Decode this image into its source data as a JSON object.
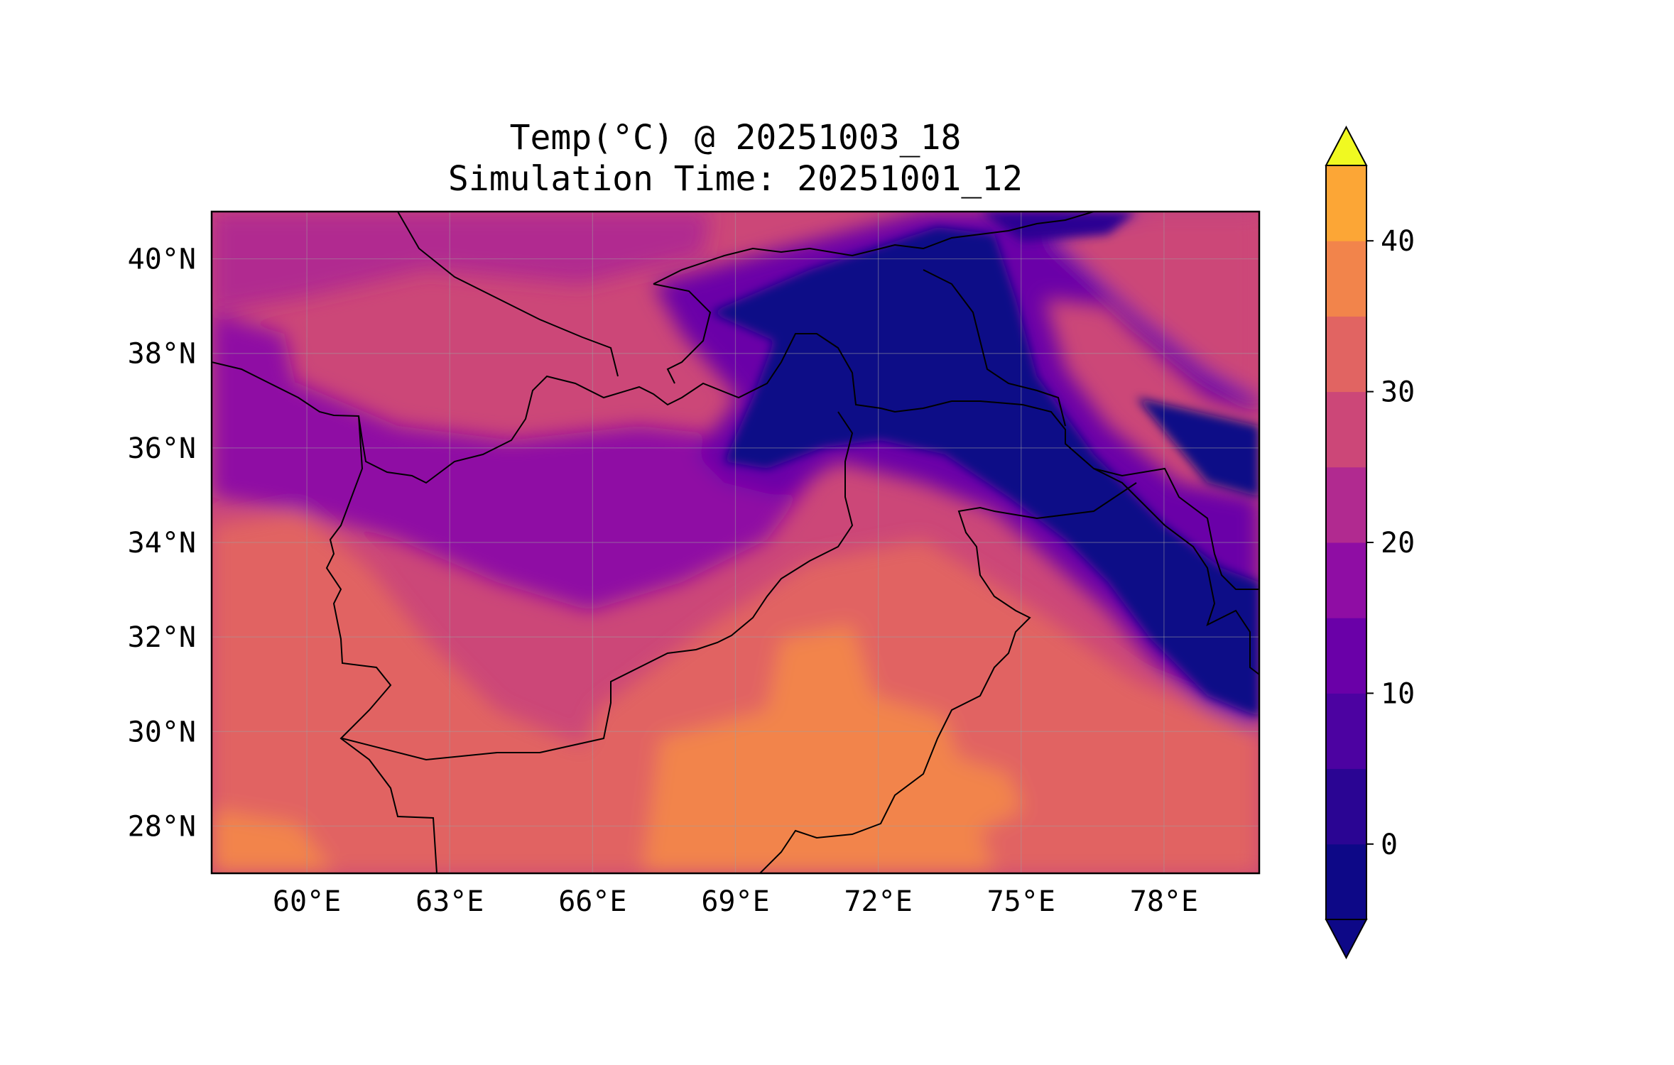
{
  "title": "Temp(°C) @ 20251003_18",
  "subtitle": "Simulation Time: 20251001_12",
  "map": {
    "lon_range": [
      58,
      80
    ],
    "lat_range": [
      27,
      41
    ],
    "lon_ticks": [
      {
        "value": 60,
        "label": "60°E"
      },
      {
        "value": 63,
        "label": "63°E"
      },
      {
        "value": 66,
        "label": "66°E"
      },
      {
        "value": 69,
        "label": "69°E"
      },
      {
        "value": 72,
        "label": "72°E"
      },
      {
        "value": 75,
        "label": "75°E"
      },
      {
        "value": 78,
        "label": "78°E"
      }
    ],
    "lat_ticks": [
      {
        "value": 40,
        "label": "40°N"
      },
      {
        "value": 38,
        "label": "38°N"
      },
      {
        "value": 36,
        "label": "36°N"
      },
      {
        "value": 34,
        "label": "34°N"
      },
      {
        "value": 32,
        "label": "32°N"
      },
      {
        "value": 30,
        "label": "30°N"
      },
      {
        "value": 28,
        "label": "28°N"
      }
    ],
    "gridlines": true,
    "country_borders": true
  },
  "colorbar": {
    "extend": "both",
    "levels": [
      -5,
      0,
      5,
      10,
      15,
      20,
      25,
      30,
      35,
      40,
      45
    ],
    "colors": [
      "#0d0887",
      "#2a0593",
      "#4c02a1",
      "#6a00a8",
      "#8f0da4",
      "#b12a90",
      "#cc4778",
      "#e16462",
      "#f2844b",
      "#fca636",
      "#f0f921"
    ],
    "under_color": "#0d0887",
    "over_color": "#f0f921",
    "ticks": [
      {
        "value": 0,
        "label": "0"
      },
      {
        "value": 10,
        "label": "10"
      },
      {
        "value": 20,
        "label": "20"
      },
      {
        "value": 30,
        "label": "30"
      },
      {
        "value": 40,
        "label": "40"
      }
    ]
  },
  "colors": {
    "cold_high_terrain": "#0d0887",
    "cool": "#8f0da4",
    "mild": "#cc4778",
    "warm": "#e16462",
    "hot_plains": "#f2844b",
    "border": "#000000"
  }
}
